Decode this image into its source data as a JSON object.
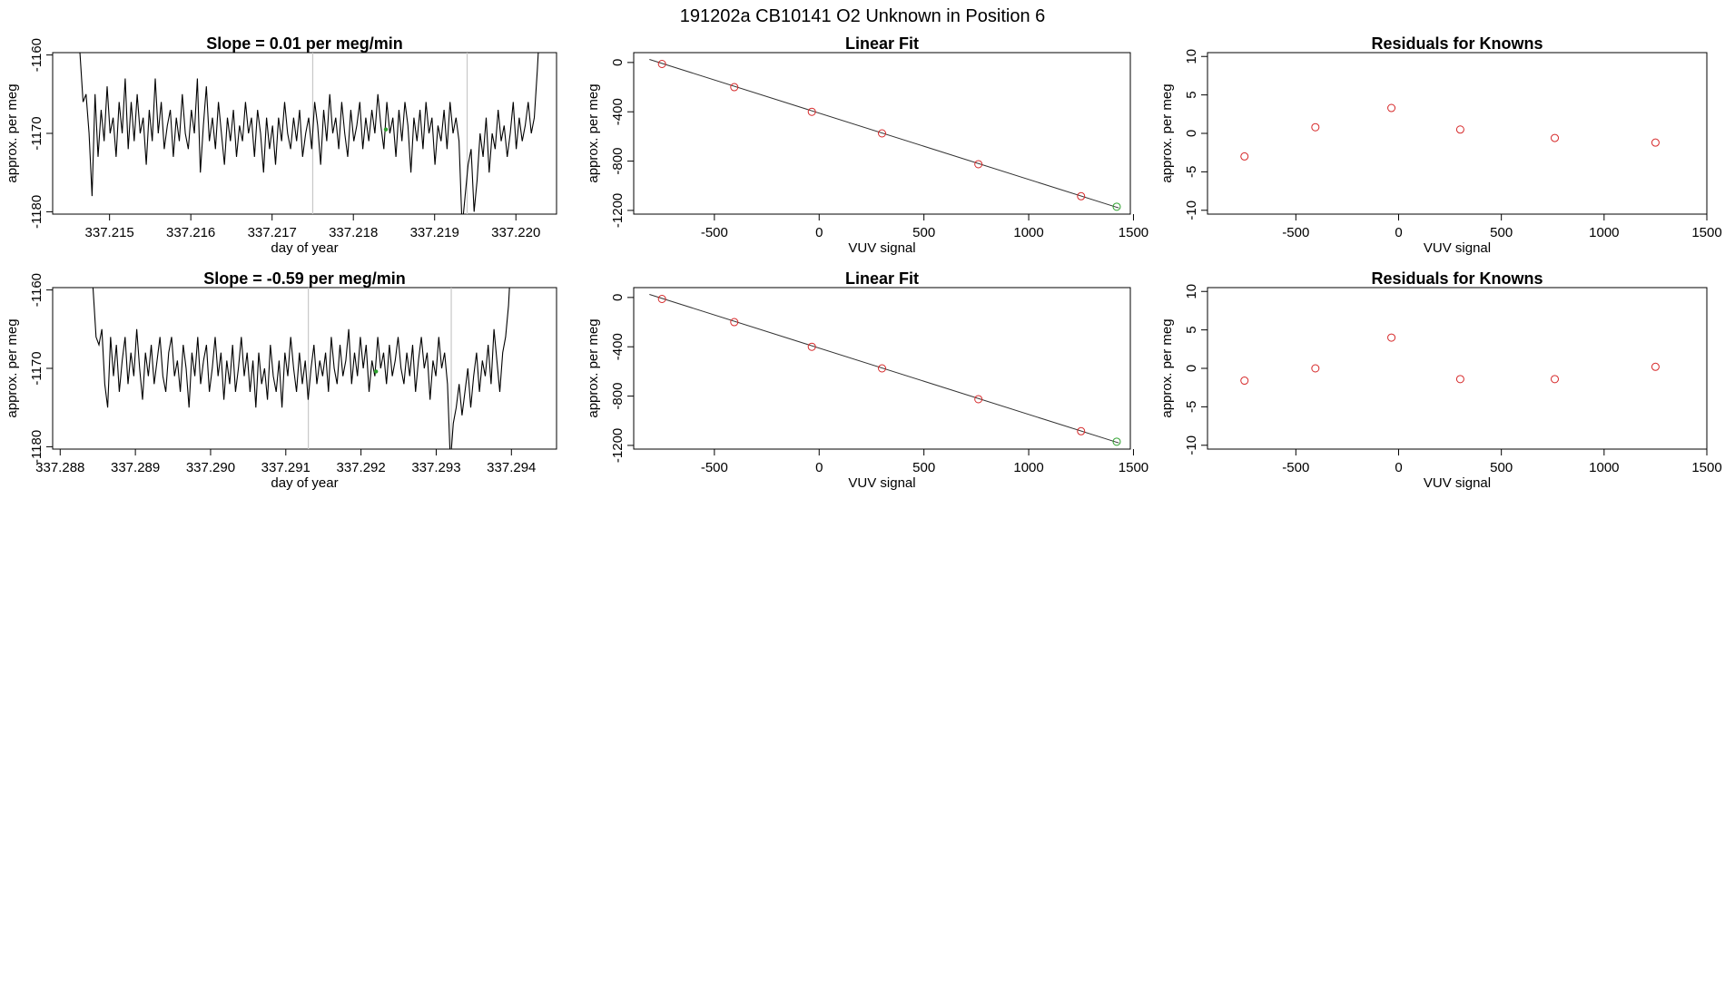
{
  "page_title": "191202a      CB10141    O2 Unknown in Position  6",
  "colors": {
    "series": "#000000",
    "known_points": "#d62728",
    "unknown_point": "#2ca02c",
    "marker_lines": "#c8c8c8"
  },
  "chart_data": [
    {
      "type": "line",
      "title": "Slope =  0.01  per meg/min",
      "xlabel": "day of year",
      "ylabel": "approx. per meg",
      "xlim": [
        337.2143,
        337.2205
      ],
      "ylim": [
        -1180.3,
        -1159.7
      ],
      "x_tick_labels": [
        "337.215",
        "337.216",
        "337.217",
        "337.218",
        "337.219",
        "337.220"
      ],
      "y_tick_labels": [
        "-1180",
        "-1170",
        "-1160"
      ],
      "vertical_markers": [
        337.2175,
        337.2194
      ],
      "trace_x_range": [
        337.2146,
        337.2203
      ],
      "trace_y": [
        -1155,
        -1160,
        -1166,
        -1165,
        -1170,
        -1178,
        -1165,
        -1173,
        -1167,
        -1171,
        -1164,
        -1170,
        -1168,
        -1173,
        -1166,
        -1170,
        -1163,
        -1172,
        -1166,
        -1171,
        -1165,
        -1170,
        -1168,
        -1174,
        -1167,
        -1171,
        -1163,
        -1170,
        -1166,
        -1172,
        -1169,
        -1167,
        -1173,
        -1168,
        -1171,
        -1165,
        -1170,
        -1172,
        -1167,
        -1170,
        -1163,
        -1175,
        -1169,
        -1164,
        -1171,
        -1168,
        -1172,
        -1166,
        -1170,
        -1174,
        -1168,
        -1171,
        -1167,
        -1173,
        -1169,
        -1171,
        -1166,
        -1170,
        -1168,
        -1173,
        -1167,
        -1170,
        -1175,
        -1168,
        -1172,
        -1169,
        -1174,
        -1168,
        -1171,
        -1166,
        -1170,
        -1172,
        -1168,
        -1171,
        -1167,
        -1173,
        -1170,
        -1168,
        -1172,
        -1166,
        -1169,
        -1174,
        -1167,
        -1171,
        -1165,
        -1170,
        -1168,
        -1172,
        -1166,
        -1170,
        -1173,
        -1167,
        -1171,
        -1169,
        -1166,
        -1172,
        -1168,
        -1171,
        -1167,
        -1170,
        -1165,
        -1169,
        -1172,
        -1166,
        -1170,
        -1168,
        -1173,
        -1167,
        -1171,
        -1166,
        -1169,
        -1175,
        -1168,
        -1171,
        -1167,
        -1172,
        -1166,
        -1170,
        -1168,
        -1174,
        -1169,
        -1171,
        -1167,
        -1172,
        -1166,
        -1170,
        -1168,
        -1171,
        -1182,
        -1178,
        -1174,
        -1172,
        -1180,
        -1176,
        -1170,
        -1173,
        -1168,
        -1175,
        -1170,
        -1172,
        -1167,
        -1171,
        -1169,
        -1173,
        -1170,
        -1166,
        -1172,
        -1168,
        -1171,
        -1169,
        -1166,
        -1170,
        -1168,
        -1162,
        -1155
      ],
      "highlight_point": {
        "x": 337.2184,
        "y": -1169.5
      }
    },
    {
      "type": "scatter",
      "title": "Linear Fit",
      "xlabel": "VUV signal",
      "ylabel": "approx. per meg",
      "xlim": [
        -885,
        1485
      ],
      "ylim": [
        -1230,
        80
      ],
      "x_tick_labels": [
        "-500",
        "0",
        "500",
        "1000",
        "1500"
      ],
      "y_tick_labels": [
        "-1200",
        "-800",
        "-400",
        "0"
      ],
      "fit_line": [
        [
          -810,
          25
        ],
        [
          1430,
          -1180
        ]
      ],
      "known_points": [
        [
          -750,
          -12
        ],
        [
          -405,
          -200
        ],
        [
          -35,
          -400
        ],
        [
          300,
          -575
        ],
        [
          760,
          -825
        ],
        [
          1250,
          -1085
        ]
      ],
      "unknown_point": [
        1420,
        -1170
      ]
    },
    {
      "type": "scatter",
      "title": "Residuals for Knowns",
      "xlabel": "VUV signal",
      "ylabel": "approx. per meg",
      "xlim": [
        -930,
        1500
      ],
      "ylim": [
        -10.5,
        10.5
      ],
      "x_tick_labels": [
        "-500",
        "0",
        "500",
        "1000",
        "1500"
      ],
      "y_tick_labels": [
        "-10",
        "-5",
        "0",
        "5",
        "10"
      ],
      "points": [
        [
          -750,
          -3
        ],
        [
          -405,
          0.8
        ],
        [
          -35,
          3.3
        ],
        [
          300,
          0.5
        ],
        [
          760,
          -0.6
        ],
        [
          1250,
          -1.2
        ]
      ]
    },
    {
      "type": "line",
      "title": "Slope =  -0.59  per meg/min",
      "xlabel": "day of year",
      "ylabel": "approx. per meg",
      "xlim": [
        337.2879,
        337.2946
      ],
      "ylim": [
        -1180.3,
        -1159.7
      ],
      "x_tick_labels": [
        "337.288",
        "337.289",
        "337.290",
        "337.291",
        "337.292",
        "337.293",
        "337.294"
      ],
      "y_tick_labels": [
        "-1180",
        "-1170",
        "-1160"
      ],
      "vertical_markers": [
        337.2913,
        337.2932
      ],
      "trace_x_range": [
        337.2884,
        337.294
      ],
      "trace_y": [
        -1155,
        -1160,
        -1166,
        -1167,
        -1165,
        -1172,
        -1175,
        -1166,
        -1171,
        -1167,
        -1173,
        -1169,
        -1166,
        -1172,
        -1168,
        -1171,
        -1165,
        -1170,
        -1174,
        -1168,
        -1171,
        -1167,
        -1172,
        -1169,
        -1166,
        -1171,
        -1173,
        -1168,
        -1166,
        -1171,
        -1169,
        -1173,
        -1167,
        -1170,
        -1175,
        -1168,
        -1171,
        -1166,
        -1172,
        -1169,
        -1167,
        -1173,
        -1170,
        -1166,
        -1171,
        -1168,
        -1174,
        -1169,
        -1172,
        -1167,
        -1173,
        -1170,
        -1166,
        -1171,
        -1168,
        -1173,
        -1169,
        -1175,
        -1168,
        -1172,
        -1170,
        -1174,
        -1167,
        -1171,
        -1173,
        -1169,
        -1175,
        -1168,
        -1171,
        -1166,
        -1170,
        -1173,
        -1168,
        -1172,
        -1169,
        -1174,
        -1170,
        -1167,
        -1172,
        -1169,
        -1171,
        -1168,
        -1173,
        -1166,
        -1170,
        -1172,
        -1167,
        -1171,
        -1169,
        -1165,
        -1172,
        -1168,
        -1171,
        -1166,
        -1170,
        -1167,
        -1173,
        -1169,
        -1171,
        -1166,
        -1170,
        -1168,
        -1172,
        -1167,
        -1171,
        -1169,
        -1166,
        -1170,
        -1172,
        -1168,
        -1171,
        -1167,
        -1173,
        -1169,
        -1166,
        -1170,
        -1168,
        -1174,
        -1169,
        -1171,
        -1166,
        -1170,
        -1168,
        -1172,
        -1182,
        -1177,
        -1175,
        -1172,
        -1176,
        -1173,
        -1170,
        -1175,
        -1171,
        -1168,
        -1173,
        -1169,
        -1171,
        -1167,
        -1172,
        -1165,
        -1169,
        -1173,
        -1168,
        -1166,
        -1162,
        -1155
      ],
      "highlight_point": {
        "x": 337.2922,
        "y": -1170.4
      }
    },
    {
      "type": "scatter",
      "title": "Linear Fit",
      "xlabel": "VUV signal",
      "ylabel": "approx. per meg",
      "xlim": [
        -885,
        1485
      ],
      "ylim": [
        -1230,
        80
      ],
      "x_tick_labels": [
        "-500",
        "0",
        "500",
        "1000",
        "1500"
      ],
      "y_tick_labels": [
        "-1200",
        "-800",
        "-400",
        "0"
      ],
      "fit_line": [
        [
          -810,
          25
        ],
        [
          1430,
          -1180
        ]
      ],
      "known_points": [
        [
          -750,
          -12
        ],
        [
          -405,
          -200
        ],
        [
          -35,
          -400
        ],
        [
          300,
          -575
        ],
        [
          760,
          -825
        ],
        [
          1250,
          -1085
        ]
      ],
      "unknown_point": [
        1420,
        -1170
      ]
    },
    {
      "type": "scatter",
      "title": "Residuals for Knowns",
      "xlabel": "VUV signal",
      "ylabel": "approx. per meg",
      "xlim": [
        -930,
        1500
      ],
      "ylim": [
        -10.5,
        10.5
      ],
      "x_tick_labels": [
        "-500",
        "0",
        "500",
        "1000",
        "1500"
      ],
      "y_tick_labels": [
        "-10",
        "-5",
        "0",
        "5",
        "10"
      ],
      "points": [
        [
          -750,
          -1.6
        ],
        [
          -405,
          0
        ],
        [
          -35,
          4
        ],
        [
          300,
          -1.4
        ],
        [
          760,
          -1.4
        ],
        [
          1250,
          0.2
        ]
      ]
    }
  ]
}
